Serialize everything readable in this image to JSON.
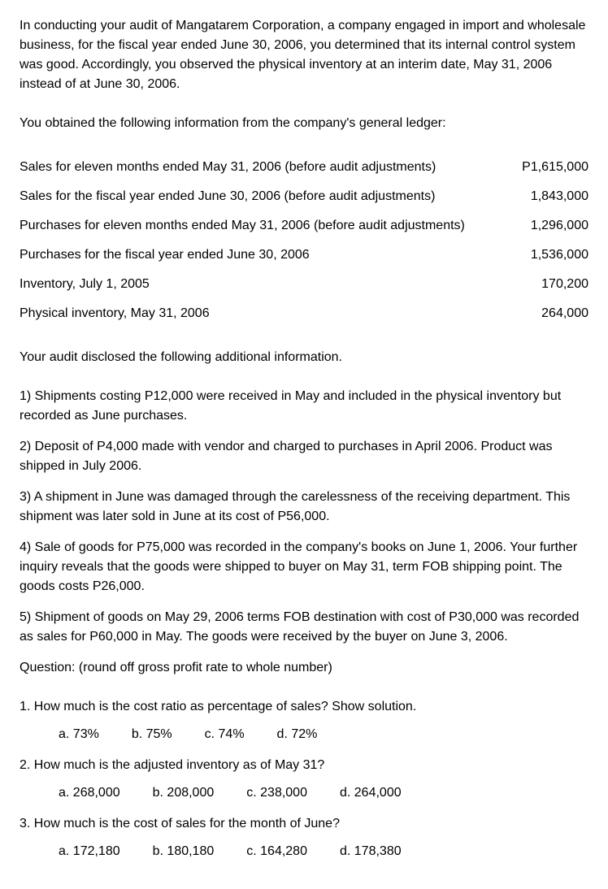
{
  "intro": "In conducting your audit of Mangatarem Corporation, a company engaged in import and wholesale business, for the fiscal year ended June 30, 2006, you determined that its internal control system was good.  Accordingly, you observed the physical inventory at an interim date, May 31, 2006 instead of at June 30, 2006.",
  "ledger_intro": "You obtained the following information from the company's general ledger:",
  "ledger": [
    {
      "label": "Sales for eleven months ended May 31, 2006 (before audit adjustments)",
      "value": "P1,615,000"
    },
    {
      "label": "Sales for the fiscal year ended June 30, 2006 (before audit adjustments)",
      "value": "1,843,000"
    },
    {
      "label": "Purchases for eleven months ended May 31, 2006 (before audit adjustments)",
      "value": "1,296,000"
    },
    {
      "label": "Purchases for the fiscal year ended June 30, 2006",
      "value": "1,536,000"
    },
    {
      "label": "Inventory, July 1, 2005",
      "value": "170,200"
    },
    {
      "label": "Physical inventory, May 31, 2006",
      "value": "264,000"
    }
  ],
  "additional_intro": "Your audit disclosed the following additional information.",
  "additional": [
    "1)  Shipments costing P12,000 were received in May and included in the physical inventory but recorded as June purchases.",
    "2)  Deposit of P4,000 made with vendor and charged to purchases in April 2006.  Product was shipped in July 2006.",
    "3)  A shipment in June was damaged through the carelessness of the receiving department.  This shipment was later sold in June at its cost of P56,000.",
    "4) Sale of goods for P75,000 was recorded in the company's books on June 1, 2006. Your further inquiry reveals that the goods were shipped to buyer on May 31, term FOB shipping point. The goods costs P26,000.",
    "5) Shipment of goods on May 29, 2006 terms FOB destination with cost of P30,000 was recorded as sales for P60,000 in May. The goods were received by the buyer on June 3, 2006."
  ],
  "question_intro": "Question: (round off gross profit rate to whole number)",
  "questions": [
    {
      "text": "1. How much is the cost ratio as percentage of sales? Show solution.",
      "options": [
        "a. 73%",
        "b. 75%",
        "c. 74%",
        "d. 72%"
      ]
    },
    {
      "text": "2. How much is the adjusted inventory as of May 31?",
      "options": [
        "a. 268,000",
        "b. 208,000",
        "c. 238,000",
        "d. 264,000"
      ]
    },
    {
      "text": "3. How much is the cost of sales for the month of June?",
      "options": [
        "a. 172,180",
        "b. 180,180",
        "c. 164,280",
        "d. 178,380"
      ]
    }
  ]
}
